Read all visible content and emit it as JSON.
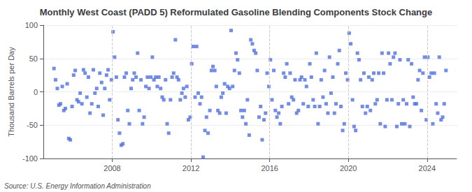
{
  "chart_data": {
    "type": "scatter",
    "title": "Monthly West Coast (PADD 5) Reformulated Gasoline Blending Components Stock Change",
    "ylabel": "Thousand Barrels per Day",
    "annotations": [
      "Source: U.S. Energy Information Administration"
    ],
    "marker": "square",
    "grid": true,
    "ylim": [
      -100,
      100
    ],
    "yticks": [
      -100,
      -50,
      0,
      50,
      100
    ],
    "xlim": [
      2004.5,
      2025.5
    ],
    "xticks": [
      2008,
      2012,
      2016,
      2020,
      2024
    ],
    "x": [
      2005.04,
      2005.12,
      2005.21,
      2005.29,
      2005.37,
      2005.46,
      2005.54,
      2005.62,
      2005.71,
      2005.79,
      2005.87,
      2005.96,
      2006.04,
      2006.12,
      2006.21,
      2006.29,
      2006.37,
      2006.46,
      2006.54,
      2006.62,
      2006.71,
      2006.79,
      2006.87,
      2006.96,
      2007.04,
      2007.12,
      2007.21,
      2007.29,
      2007.37,
      2007.46,
      2007.54,
      2007.62,
      2007.71,
      2007.79,
      2007.87,
      2007.96,
      2008.04,
      2008.12,
      2008.21,
      2008.29,
      2008.37,
      2008.46,
      2008.54,
      2008.62,
      2008.71,
      2008.79,
      2008.87,
      2008.96,
      2009.04,
      2009.12,
      2009.21,
      2009.29,
      2009.37,
      2009.46,
      2009.54,
      2009.62,
      2009.71,
      2009.79,
      2009.87,
      2009.96,
      2010.04,
      2010.12,
      2010.21,
      2010.29,
      2010.37,
      2010.46,
      2010.54,
      2010.62,
      2010.71,
      2010.79,
      2010.87,
      2010.96,
      2011.04,
      2011.12,
      2011.21,
      2011.29,
      2011.37,
      2011.46,
      2011.54,
      2011.62,
      2011.71,
      2011.79,
      2011.87,
      2011.96,
      2012.04,
      2012.12,
      2012.21,
      2012.29,
      2012.37,
      2012.46,
      2012.54,
      2012.62,
      2012.71,
      2012.79,
      2012.87,
      2012.96,
      2013.04,
      2013.12,
      2013.21,
      2013.29,
      2013.37,
      2013.46,
      2013.54,
      2013.62,
      2013.71,
      2013.79,
      2013.87,
      2013.96,
      2014.04,
      2014.12,
      2014.21,
      2014.29,
      2014.37,
      2014.46,
      2014.54,
      2014.62,
      2014.71,
      2014.79,
      2014.87,
      2014.96,
      2015.04,
      2015.12,
      2015.21,
      2015.29,
      2015.37,
      2015.46,
      2015.54,
      2015.62,
      2015.71,
      2015.79,
      2015.87,
      2015.96,
      2016.04,
      2016.12,
      2016.21,
      2016.29,
      2016.37,
      2016.46,
      2016.54,
      2016.62,
      2016.71,
      2016.79,
      2016.87,
      2016.96,
      2017.04,
      2017.12,
      2017.21,
      2017.29,
      2017.37,
      2017.46,
      2017.54,
      2017.62,
      2017.71,
      2017.79,
      2017.87,
      2017.96,
      2018.04,
      2018.12,
      2018.21,
      2018.29,
      2018.37,
      2018.46,
      2018.54,
      2018.62,
      2018.71,
      2018.79,
      2018.87,
      2018.96,
      2019.04,
      2019.12,
      2019.21,
      2019.29,
      2019.37,
      2019.46,
      2019.54,
      2019.62,
      2019.71,
      2019.79,
      2019.87,
      2019.96,
      2020.04,
      2020.12,
      2020.21,
      2020.29,
      2020.37,
      2020.46,
      2020.54,
      2020.62,
      2020.71,
      2020.79,
      2020.87,
      2020.96,
      2021.04,
      2021.12,
      2021.21,
      2021.29,
      2021.37,
      2021.46,
      2021.54,
      2021.62,
      2021.71,
      2021.79,
      2021.87,
      2021.96,
      2022.04,
      2022.12,
      2022.21,
      2022.29,
      2022.37,
      2022.46,
      2022.54,
      2022.62,
      2022.71,
      2022.79,
      2022.87,
      2022.96,
      2023.04,
      2023.12,
      2023.21,
      2023.29,
      2023.37,
      2023.46,
      2023.54,
      2023.62,
      2023.71,
      2023.79,
      2023.87,
      2023.96,
      2024.04,
      2024.12,
      2024.21,
      2024.29,
      2024.37,
      2024.46,
      2024.54,
      2024.62,
      2024.71,
      2024.79,
      2024.87,
      2024.96
    ],
    "values": [
      35,
      18,
      5,
      -20,
      -18,
      8,
      -28,
      -25,
      12,
      -70,
      -72,
      -22,
      25,
      32,
      -12,
      -15,
      -2,
      -18,
      33,
      28,
      -8,
      22,
      -32,
      -18,
      33,
      -2,
      5,
      -22,
      28,
      14,
      -35,
      5,
      25,
      33,
      -12,
      18,
      90,
      52,
      22,
      -42,
      -62,
      -80,
      -78,
      22,
      28,
      -28,
      -48,
      5,
      18,
      28,
      22,
      58,
      -28,
      18,
      -48,
      -38,
      8,
      22,
      5,
      22,
      52,
      18,
      22,
      8,
      22,
      5,
      -8,
      -12,
      18,
      -48,
      -62,
      -12,
      22,
      28,
      78,
      22,
      18,
      -12,
      -2,
      5,
      -8,
      8,
      -42,
      -38,
      42,
      68,
      -8,
      68,
      -2,
      -18,
      -8,
      -98,
      -58,
      -38,
      -62,
      -28,
      32,
      38,
      32,
      8,
      -28,
      -32,
      -8,
      -2,
      12,
      -32,
      8,
      5,
      92,
      8,
      32,
      58,
      48,
      28,
      -28,
      -38,
      -28,
      -48,
      -12,
      -65,
      78,
      72,
      62,
      58,
      32,
      -38,
      -22,
      -72,
      -42,
      -32,
      28,
      8,
      48,
      -12,
      32,
      -28,
      -38,
      -32,
      -48,
      -22,
      28,
      22,
      42,
      -18,
      28,
      -8,
      -12,
      18,
      -32,
      -28,
      18,
      22,
      -18,
      18,
      8,
      -22,
      42,
      22,
      -12,
      -22,
      58,
      -48,
      -22,
      18,
      -8,
      32,
      -18,
      -32,
      52,
      -2,
      22,
      -32,
      -18,
      42,
      62,
      -22,
      -58,
      -48,
      28,
      18,
      88,
      72,
      -12,
      -52,
      -58,
      58,
      48,
      18,
      -22,
      28,
      -32,
      -22,
      22,
      -28,
      18,
      28,
      -18,
      -12,
      28,
      -48,
      58,
      28,
      -52,
      -12,
      58,
      42,
      -12,
      52,
      58,
      -52,
      -18,
      48,
      -48,
      -12,
      -48,
      -18,
      48,
      -52,
      42,
      -8,
      -18,
      -18,
      18,
      32,
      -28,
      28,
      52,
      -42,
      52,
      22,
      28,
      -48,
      28,
      -18,
      -32,
      52,
      -42,
      -38,
      -18,
      32
    ]
  }
}
